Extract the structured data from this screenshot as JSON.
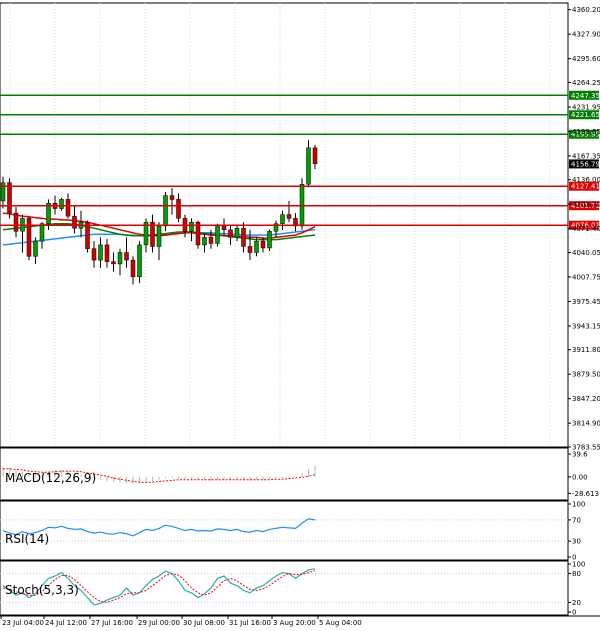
{
  "chart_data": {
    "type": "candlestick",
    "main": {
      "price_ticks": [
        "4360.20",
        "4327.90",
        "4295.60",
        "4264.25",
        "4231.95",
        "4199.65",
        "4167.35",
        "4136.00",
        "4103.70",
        "4071.40",
        "4040.05",
        "4007.75",
        "3975.45",
        "3943.15",
        "3911.80",
        "3879.50",
        "3847.20",
        "3814.90",
        "3783.55"
      ],
      "ylim": [
        3783.55,
        4369.0
      ],
      "current_price": "4156.79",
      "resistance_levels": [
        {
          "value": 4247.35,
          "label": "4247.35"
        },
        {
          "value": 4221.65,
          "label": "4221.65"
        },
        {
          "value": 4195.95,
          "label": "4195.95"
        }
      ],
      "support_levels": [
        {
          "value": 4127.41,
          "label": "4127.41"
        },
        {
          "value": 4101.71,
          "label": "4101.71"
        },
        {
          "value": 4076.01,
          "label": "4076.01"
        }
      ],
      "candles": [
        [
          4108,
          4140,
          4098,
          4132
        ],
        [
          4132,
          4138,
          4085,
          4092
        ],
        [
          4092,
          4100,
          4060,
          4068
        ],
        [
          4068,
          4090,
          4040,
          4085
        ],
        [
          4085,
          4088,
          4030,
          4035
        ],
        [
          4035,
          4060,
          4025,
          4055
        ],
        [
          4055,
          4080,
          4045,
          4078
        ],
        [
          4078,
          4110,
          4070,
          4105
        ],
        [
          4105,
          4115,
          4090,
          4098
        ],
        [
          4098,
          4112,
          4095,
          4110
        ],
        [
          4110,
          4118,
          4085,
          4088
        ],
        [
          4088,
          4102,
          4065,
          4072
        ],
        [
          4072,
          4095,
          4060,
          4080
        ],
        [
          4080,
          4082,
          4040,
          4045
        ],
        [
          4045,
          4055,
          4020,
          4030
        ],
        [
          4030,
          4060,
          4020,
          4050
        ],
        [
          4050,
          4058,
          4020,
          4028
        ],
        [
          4028,
          4040,
          4015,
          4025
        ],
        [
          4025,
          4045,
          4010,
          4040
        ],
        [
          4040,
          4060,
          4020,
          4030
        ],
        [
          4030,
          4035,
          3998,
          4008
        ],
        [
          4008,
          4055,
          4000,
          4050
        ],
        [
          4050,
          4085,
          4040,
          4080
        ],
        [
          4080,
          4090,
          4040,
          4048
        ],
        [
          4048,
          4080,
          4030,
          4075
        ],
        [
          4075,
          4120,
          4068,
          4115
        ],
        [
          4115,
          4125,
          4090,
          4110
        ],
        [
          4110,
          4118,
          4080,
          4085
        ],
        [
          4085,
          4090,
          4060,
          4068
        ],
        [
          4068,
          4085,
          4055,
          4080
        ],
        [
          4080,
          4082,
          4045,
          4050
        ],
        [
          4050,
          4065,
          4040,
          4060
        ],
        [
          4060,
          4070,
          4045,
          4052
        ],
        [
          4052,
          4078,
          4048,
          4075
        ],
        [
          4075,
          4085,
          4062,
          4070
        ],
        [
          4070,
          4075,
          4050,
          4060
        ],
        [
          4060,
          4075,
          4055,
          4072
        ],
        [
          4072,
          4080,
          4040,
          4048
        ],
        [
          4048,
          4070,
          4030,
          4040
        ],
        [
          4040,
          4060,
          4035,
          4055
        ],
        [
          4055,
          4060,
          4040,
          4046
        ],
        [
          4046,
          4070,
          4042,
          4068
        ],
        [
          4068,
          4082,
          4060,
          4078
        ],
        [
          4078,
          4095,
          4070,
          4090
        ],
        [
          4090,
          4108,
          4080,
          4085
        ],
        [
          4085,
          4092,
          4068,
          4075
        ],
        [
          4075,
          4138,
          4070,
          4130
        ],
        [
          4130,
          4188,
          4126,
          4178
        ],
        [
          4178,
          4182,
          4150,
          4157
        ]
      ],
      "sma_fast": [
        4092,
        4091,
        4089,
        4088,
        4087,
        4086,
        4085,
        4084,
        4084,
        4083,
        4083,
        4082,
        4081,
        4080,
        4078,
        4076,
        4074,
        4072,
        4070,
        4068,
        4066,
        4064,
        4063,
        4062,
        4062,
        4063,
        4064,
        4065,
        4066,
        4066,
        4065,
        4064,
        4063,
        4063,
        4062,
        4062,
        4061,
        4061,
        4060,
        4060,
        4059,
        4059,
        4060,
        4061,
        4062,
        4063,
        4066,
        4070,
        4074
      ],
      "sma_mid": [
        4070,
        4071,
        4072,
        4073,
        4074,
        4075,
        4076,
        4077,
        4078,
        4078,
        4078,
        4077,
        4076,
        4074,
        4072,
        4070,
        4068,
        4066,
        4064,
        4063,
        4062,
        4062,
        4062,
        4063,
        4064,
        4065,
        4066,
        4067,
        4067,
        4067,
        4066,
        4065,
        4064,
        4063,
        4062,
        4061,
        4060,
        4059,
        4058,
        4057,
        4057,
        4057,
        4057,
        4058,
        4059,
        4060,
        4061,
        4062,
        4063
      ],
      "sma_slow": [
        4050,
        4051,
        4052,
        4053,
        4054,
        4055,
        4056,
        4057,
        4058,
        4059,
        4060,
        4061,
        4062,
        4063,
        4064,
        4064,
        4064,
        4064,
        4064,
        4063,
        4063,
        4062,
        4062,
        4062,
        4062,
        4063,
        4064,
        4065,
        4066,
        4066,
        4066,
        4066,
        4066,
        4065,
        4065,
        4064,
        4064,
        4063,
        4063,
        4063,
        4063,
        4063,
        4064,
        4065,
        4066,
        4067,
        4068,
        4069,
        4070
      ]
    },
    "macd": {
      "title": "MACD(12,26,9)",
      "ticks": [
        "39.6",
        "0.00",
        "-28.613"
      ],
      "ylim": [
        -35,
        45
      ],
      "histogram": [
        18,
        16,
        12,
        8,
        6,
        5,
        7,
        10,
        12,
        12,
        10,
        7,
        4,
        1,
        -2,
        -5,
        -7,
        -9,
        -10,
        -11,
        -12,
        -11,
        -9,
        -7,
        -5,
        -3,
        -2,
        -3,
        -4,
        -5,
        -5,
        -6,
        -6,
        -5,
        -5,
        -5,
        -6,
        -6,
        -6,
        -5,
        -5,
        -4,
        -3,
        -2,
        -1,
        0,
        6,
        14,
        20
      ],
      "signal": [
        14,
        14,
        13,
        12,
        10,
        9,
        8,
        8,
        9,
        10,
        10,
        10,
        9,
        7,
        5,
        3,
        1,
        -2,
        -4,
        -6,
        -8,
        -9,
        -10,
        -9,
        -8,
        -7,
        -6,
        -5,
        -5,
        -5,
        -5,
        -5,
        -5,
        -5,
        -5,
        -5,
        -5,
        -5,
        -5,
        -5,
        -5,
        -5,
        -4,
        -4,
        -3,
        -2,
        -1,
        1,
        4
      ]
    },
    "rsi": {
      "title": "RSI(14)",
      "ticks": [
        "100",
        "70",
        "30",
        "0"
      ],
      "ylim": [
        0,
        100
      ],
      "values": [
        50,
        45,
        42,
        48,
        44,
        46,
        50,
        56,
        55,
        58,
        54,
        52,
        53,
        48,
        45,
        47,
        44,
        43,
        46,
        44,
        40,
        46,
        52,
        50,
        54,
        60,
        58,
        54,
        50,
        52,
        49,
        50,
        49,
        53,
        52,
        50,
        52,
        48,
        47,
        50,
        48,
        52,
        54,
        56,
        55,
        54,
        64,
        72,
        70
      ]
    },
    "stoch": {
      "title": "Stoch(5,3,3)",
      "ticks": [
        "100",
        "80",
        "20",
        "0"
      ],
      "ylim": [
        0,
        100
      ],
      "k": [
        55,
        45,
        35,
        40,
        30,
        38,
        55,
        70,
        75,
        82,
        70,
        55,
        45,
        30,
        15,
        18,
        25,
        30,
        35,
        50,
        35,
        40,
        55,
        68,
        75,
        85,
        80,
        65,
        45,
        40,
        30,
        38,
        50,
        70,
        75,
        60,
        55,
        45,
        40,
        50,
        55,
        65,
        75,
        82,
        80,
        70,
        80,
        88,
        90
      ],
      "d": [
        50,
        48,
        42,
        38,
        35,
        35,
        42,
        55,
        68,
        76,
        76,
        68,
        55,
        42,
        30,
        22,
        20,
        25,
        30,
        38,
        40,
        40,
        45,
        55,
        65,
        76,
        80,
        77,
        65,
        50,
        40,
        35,
        40,
        52,
        65,
        70,
        65,
        55,
        47,
        45,
        48,
        55,
        65,
        74,
        80,
        78,
        78,
        82,
        86
      ]
    },
    "x_labels": [
      "23 Jul 04:00",
      "24 Jul 12:00",
      "27 Jul 16:00",
      "29 Jul 00:00",
      "30 Jul 08:00",
      "31 Jul 16:00",
      "3 Aug 20:00",
      "5 Aug 04:00"
    ],
    "colors": {
      "bull": "#00a000",
      "bear": "#d00000",
      "resistance": "#008000",
      "support": "#e00000",
      "sma_fast": "#e00000",
      "sma_mid": "#008000",
      "sma_slow": "#1e90ff",
      "macd_signal": "#ff0000",
      "macd_hist": "#c0c0c0",
      "rsi": "#1e90ff",
      "stoch_k": "#20b2aa",
      "stoch_d": "#ff0000",
      "price_tag": "#000000"
    }
  }
}
